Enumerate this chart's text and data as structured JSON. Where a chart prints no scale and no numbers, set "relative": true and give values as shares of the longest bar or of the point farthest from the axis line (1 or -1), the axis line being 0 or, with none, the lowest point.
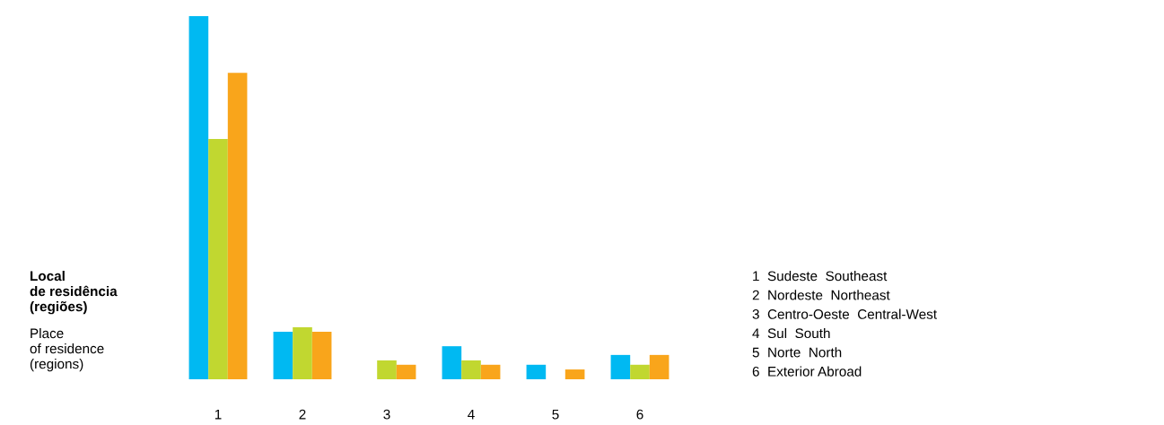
{
  "chart_data": {
    "type": "bar",
    "relative": true,
    "title": "Local\nde residência\n(regiões)",
    "subtitle": "Place\nof residence\n(regions)",
    "categories": [
      "1",
      "2",
      "3",
      "4",
      "5",
      "6"
    ],
    "series": [
      {
        "color": "#00b9f2",
        "values": [
          1,
          0.131,
          0,
          0.091,
          0.04,
          0.067
        ]
      },
      {
        "color": "#c1d730",
        "values": [
          0.662,
          0.143,
          0.052,
          0.052,
          0,
          0.04
        ]
      },
      {
        "color": "#f9a51b",
        "values": [
          0.844,
          0.131,
          0.04,
          0.04,
          0.027,
          0.067
        ]
      }
    ],
    "annotations": [
      "1  Sudeste  Southeast",
      "2  Nordeste  Northeast",
      "3  Centro-Oeste  Central-West",
      "4  Sul  South",
      "5  Norte  North",
      "6  Exterior Abroad"
    ],
    "grid": false,
    "legend": false
  }
}
